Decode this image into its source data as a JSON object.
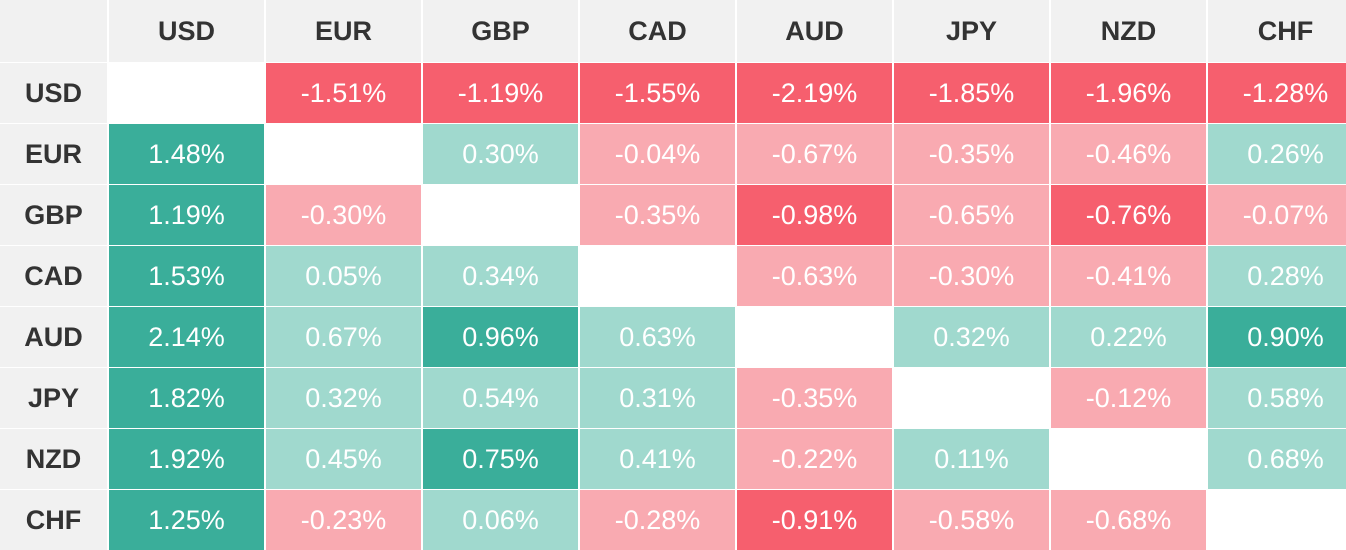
{
  "chart_data": {
    "type": "heatmap",
    "columns": [
      "USD",
      "EUR",
      "GBP",
      "CAD",
      "AUD",
      "JPY",
      "NZD",
      "CHF"
    ],
    "rows": [
      "USD",
      "EUR",
      "GBP",
      "CAD",
      "AUD",
      "JPY",
      "NZD",
      "CHF"
    ],
    "cells": [
      [
        "",
        "-1.51%",
        "-1.19%",
        "-1.55%",
        "-2.19%",
        "-1.85%",
        "-1.96%",
        "-1.28%"
      ],
      [
        "1.48%",
        "",
        "0.30%",
        "-0.04%",
        "-0.67%",
        "-0.35%",
        "-0.46%",
        "0.26%"
      ],
      [
        "1.19%",
        "-0.30%",
        "",
        "-0.35%",
        "-0.98%",
        "-0.65%",
        "-0.76%",
        "-0.07%"
      ],
      [
        "1.53%",
        "0.05%",
        "0.34%",
        "",
        "-0.63%",
        "-0.30%",
        "-0.41%",
        "0.28%"
      ],
      [
        "2.14%",
        "0.67%",
        "0.96%",
        "0.63%",
        "",
        "0.32%",
        "0.22%",
        "0.90%"
      ],
      [
        "1.82%",
        "0.32%",
        "0.54%",
        "0.31%",
        "-0.35%",
        "",
        "-0.12%",
        "0.58%"
      ],
      [
        "1.92%",
        "0.45%",
        "0.75%",
        "0.41%",
        "-0.22%",
        "0.11%",
        "",
        "0.68%"
      ],
      [
        "1.25%",
        "-0.23%",
        "0.06%",
        "-0.28%",
        "-0.91%",
        "-0.58%",
        "-0.68%",
        ""
      ]
    ],
    "colors": {
      "positive_strong": "#3aae9a",
      "positive_light": "#a0d9ce",
      "negative_strong": "#f65f6e",
      "negative_light": "#f9aab1"
    }
  }
}
